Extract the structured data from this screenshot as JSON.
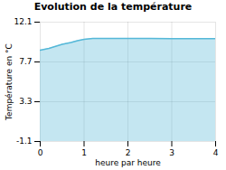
{
  "chart_data": {
    "type": "area",
    "title": "Evolution de la température",
    "xlabel": "heure par heure",
    "ylabel": "Température en °C",
    "color": "#55b8d8",
    "x": [
      0,
      0.05,
      0.1,
      0.2,
      0.3,
      0.4,
      0.5,
      0.6,
      0.7,
      0.85,
      1.0,
      1.2,
      1.5,
      2.0,
      2.5,
      3.0,
      3.5,
      4.0
    ],
    "values": [
      9.0,
      9.05,
      9.1,
      9.2,
      9.35,
      9.5,
      9.65,
      9.75,
      9.85,
      10.05,
      10.2,
      10.3,
      10.3,
      10.3,
      10.3,
      10.28,
      10.28,
      10.27
    ],
    "xlim": [
      0,
      4
    ],
    "ylim": [
      -1.1,
      12.1
    ],
    "xticks": [
      0,
      1,
      2,
      3,
      4
    ],
    "yticks": [
      -1.1,
      3.3,
      7.7,
      12.1
    ],
    "grid": true
  }
}
